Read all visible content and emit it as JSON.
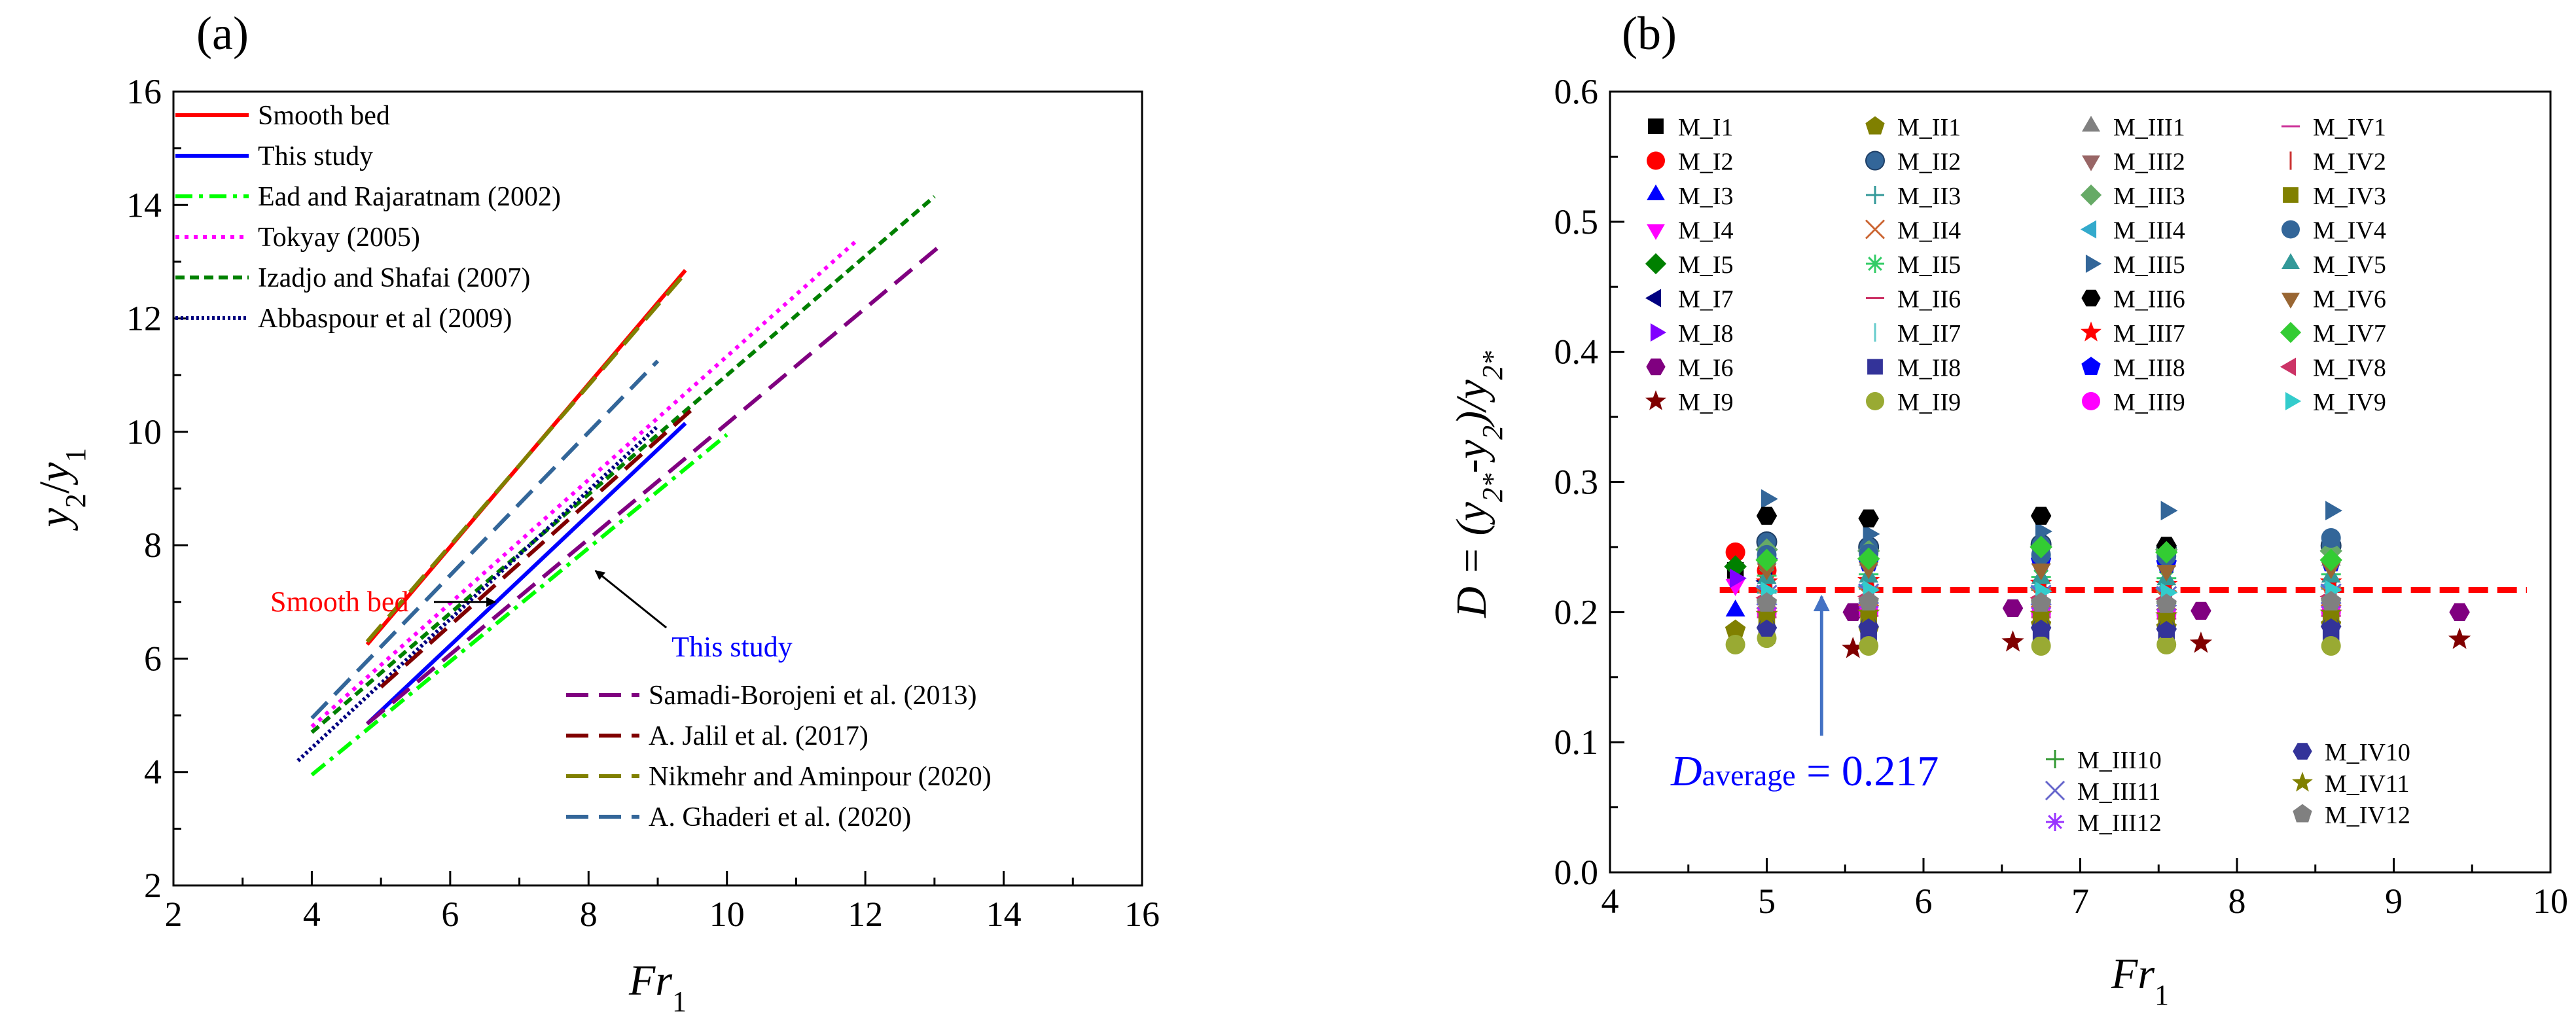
{
  "chart_data": [
    {
      "panel_label": "(a)",
      "type": "line",
      "xlabel_main": "Fr",
      "xlabel_sub": "1",
      "ylabel": {
        "y": "y",
        "s2": "2",
        "slash": "/",
        "y_b": "y",
        "s1": "1"
      },
      "xlim": [
        2,
        16
      ],
      "ylim": [
        2,
        16
      ],
      "xticks": [
        "2",
        "4",
        "6",
        "8",
        "10",
        "12",
        "14",
        "16"
      ],
      "yticks": [
        "2",
        "4",
        "6",
        "8",
        "10",
        "12",
        "14",
        "16"
      ],
      "series": [
        {
          "name": "Smooth bed",
          "color": "#ff0000",
          "dash": "solid",
          "x": [
            4.8,
            9.4
          ],
          "y": [
            6.25,
            12.85
          ]
        },
        {
          "name": "This study",
          "color": "#0000ff",
          "dash": "solid",
          "x": [
            4.8,
            9.4
          ],
          "y": [
            4.85,
            10.15
          ]
        },
        {
          "name": "Ead and Rajaratnam (2002)",
          "color": "#00ff00",
          "dash": "dashdot",
          "x": [
            4.0,
            10.0
          ],
          "y": [
            3.95,
            9.95
          ]
        },
        {
          "name": "Tokyay (2005)",
          "color": "#ff00ff",
          "dash": "dot",
          "x": [
            4.0,
            11.9
          ],
          "y": [
            4.8,
            13.4
          ]
        },
        {
          "name": "Izadjo and Shafai (2007)",
          "color": "#008000",
          "dash": "dash",
          "x": [
            4.0,
            13.0
          ],
          "y": [
            4.7,
            14.15
          ]
        },
        {
          "name": "Abbaspour et al (2009)",
          "color": "#000080",
          "dash": "densedot",
          "x": [
            3.8,
            9.0
          ],
          "y": [
            4.2,
            10.1
          ]
        },
        {
          "name": "Samadi-Borojeni et al. (2013)",
          "color": "#800080",
          "dash": "longdash",
          "x": [
            4.8,
            13.1
          ],
          "y": [
            4.85,
            13.3
          ]
        },
        {
          "name": "A. Jalil et al. (2017)",
          "color": "#800000",
          "dash": "longdash",
          "x": [
            5.0,
            9.5
          ],
          "y": [
            5.5,
            10.4
          ]
        },
        {
          "name": "Nikmehr and Aminpour (2020)",
          "color": "#808000",
          "dash": "longdash",
          "x": [
            4.8,
            9.4
          ],
          "y": [
            6.3,
            12.8
          ]
        },
        {
          "name": "A. Ghaderi et al. (2020)",
          "color": "#336699",
          "dash": "longdash",
          "x": [
            4.0,
            9.0
          ],
          "y": [
            4.95,
            11.25
          ]
        }
      ],
      "annotations": [
        {
          "text": "Smooth bed",
          "color": "#ff0000",
          "x": 3.4,
          "y": 7.0,
          "arrow_to": [
            6.65,
            7.0
          ]
        },
        {
          "text": "This study",
          "color": "#0000ff",
          "x": 9.2,
          "y": 6.2,
          "arrow_to": [
            8.1,
            7.55
          ]
        }
      ]
    },
    {
      "panel_label": "(b)",
      "type": "scatter",
      "xlabel_main": "Fr",
      "xlabel_sub": "1",
      "ylabel": {
        "prefix": "D = (y",
        "s1": "2*",
        "mid": "-y",
        "s2": "2",
        "close": ")/y",
        "s3": "2*"
      },
      "xlim": [
        4,
        10
      ],
      "ylim": [
        0.0,
        0.6
      ],
      "xticks": [
        "4",
        "5",
        "6",
        "7",
        "8",
        "9",
        "10"
      ],
      "yticks": [
        "0.0",
        "0.1",
        "0.2",
        "0.3",
        "0.4",
        "0.5",
        "0.6"
      ],
      "average_line": {
        "value": 0.217,
        "color": "#ff0000"
      },
      "annotation": {
        "main": "D",
        "sub": "average",
        "rest": " = 0.217",
        "color": "#0000ff",
        "arrow_from": [
          5.35,
          0.105
        ],
        "arrow_to": [
          5.35,
          0.212
        ]
      },
      "series": [
        {
          "name": "M_I1",
          "color": "#000000",
          "marker": "square",
          "x": [
            4.8
          ],
          "y": [
            0.232
          ]
        },
        {
          "name": "M_I2",
          "color": "#ff0000",
          "marker": "circle",
          "x": [
            4.8,
            5.0
          ],
          "y": [
            0.246,
            0.232
          ]
        },
        {
          "name": "M_I3",
          "color": "#0000ff",
          "marker": "triangle-up",
          "x": [
            4.8
          ],
          "y": [
            0.201
          ]
        },
        {
          "name": "M_I4",
          "color": "#ff00ff",
          "marker": "triangle-down",
          "x": [
            4.8
          ],
          "y": [
            0.221
          ]
        },
        {
          "name": "M_I5",
          "color": "#008000",
          "marker": "diamond",
          "x": [
            4.8
          ],
          "y": [
            0.235
          ]
        },
        {
          "name": "M_I7",
          "color": "#000080",
          "marker": "triangle-left",
          "x": [
            5.0
          ],
          "y": [
            0.224
          ]
        },
        {
          "name": "M_I8",
          "color": "#8000ff",
          "marker": "triangle-right",
          "x": [
            4.8,
            5.0
          ],
          "y": [
            0.226,
            0.241
          ]
        },
        {
          "name": "M_I6",
          "color": "#800080",
          "marker": "hexagon",
          "x": [
            5.55,
            6.57,
            7.77,
            9.42
          ],
          "y": [
            0.2,
            0.203,
            0.201,
            0.2
          ]
        },
        {
          "name": "M_I9",
          "color": "#800000",
          "marker": "star",
          "x": [
            5.55,
            6.57,
            7.77,
            9.42
          ],
          "y": [
            0.172,
            0.177,
            0.176,
            0.179
          ]
        },
        {
          "name": "M_II1",
          "color": "#808000",
          "marker": "pentagon",
          "x": [
            4.8,
            5.65,
            6.75,
            7.55,
            8.6
          ],
          "y": [
            0.186,
            0.186,
            0.19,
            0.188,
            0.19
          ]
        },
        {
          "name": "M_II2",
          "color": "#336699",
          "marker": "circle-shaded",
          "x": [
            5.0,
            5.65,
            6.75,
            7.55,
            8.6
          ],
          "y": [
            0.254,
            0.25,
            0.252,
            0.248,
            0.251
          ]
        },
        {
          "name": "M_II3",
          "color": "#339999",
          "marker": "plus-thin",
          "x": [
            5.0,
            5.65,
            6.75,
            7.55,
            8.6
          ],
          "y": [
            0.215,
            0.218,
            0.217,
            0.216,
            0.218
          ]
        },
        {
          "name": "M_II4",
          "color": "#cc6633",
          "marker": "x-thin",
          "x": [
            5.0,
            5.65,
            6.75,
            7.55,
            8.6
          ],
          "y": [
            0.21,
            0.212,
            0.211,
            0.209,
            0.212
          ]
        },
        {
          "name": "M_II5",
          "color": "#33cc66",
          "marker": "asterisk",
          "x": [
            5.0,
            5.65,
            6.75,
            7.55,
            8.6
          ],
          "y": [
            0.228,
            0.229,
            0.227,
            0.226,
            0.229
          ]
        },
        {
          "name": "M_II6",
          "color": "#cc3366",
          "marker": "hline",
          "x": [
            5.0,
            5.65,
            6.75,
            7.55,
            8.6
          ],
          "y": [
            0.2,
            0.201,
            0.2,
            0.199,
            0.201
          ]
        },
        {
          "name": "M_II7",
          "color": "#66cccc",
          "marker": "vline",
          "x": [
            5.0,
            5.65,
            6.75,
            7.55,
            8.6
          ],
          "y": [
            0.205,
            0.206,
            0.205,
            0.204,
            0.206
          ]
        },
        {
          "name": "M_II8",
          "color": "#333399",
          "marker": "square",
          "x": [
            5.0,
            5.65,
            6.75,
            7.55,
            8.6
          ],
          "y": [
            0.182,
            0.183,
            0.182,
            0.181,
            0.183
          ]
        },
        {
          "name": "M_II9",
          "color": "#99aa33",
          "marker": "circle",
          "x": [
            4.8,
            5.0,
            5.65,
            6.75,
            7.55,
            8.6
          ],
          "y": [
            0.175,
            0.18,
            0.174,
            0.174,
            0.175,
            0.174
          ]
        },
        {
          "name": "M_III1",
          "color": "#808080",
          "marker": "triangle-up",
          "x": [
            5.0,
            5.65,
            6.75,
            7.55,
            8.6
          ],
          "y": [
            0.242,
            0.24,
            0.241,
            0.239,
            0.24
          ]
        },
        {
          "name": "M_III2",
          "color": "#996666",
          "marker": "triangle-down",
          "x": [
            5.0,
            5.65,
            6.75,
            7.55,
            8.6
          ],
          "y": [
            0.236,
            0.235,
            0.236,
            0.234,
            0.235
          ]
        },
        {
          "name": "M_III3",
          "color": "#66aa66",
          "marker": "diamond",
          "x": [
            5.0,
            5.65,
            6.75,
            7.55,
            8.6
          ],
          "y": [
            0.248,
            0.247,
            0.25,
            0.248,
            0.247
          ]
        },
        {
          "name": "M_III4",
          "color": "#33aacc",
          "marker": "triangle-left",
          "x": [
            5.0,
            5.65,
            6.75,
            7.55,
            8.6
          ],
          "y": [
            0.219,
            0.22,
            0.219,
            0.218,
            0.22
          ]
        },
        {
          "name": "M_III5",
          "color": "#336699",
          "marker": "triangle-right",
          "x": [
            5.0,
            5.65,
            6.75,
            7.55,
            8.6
          ],
          "y": [
            0.287,
            0.26,
            0.262,
            0.278,
            0.278
          ]
        },
        {
          "name": "M_III6",
          "color": "#000000",
          "marker": "hexagon",
          "x": [
            5.0,
            5.65,
            6.75,
            7.55
          ],
          "y": [
            0.274,
            0.272,
            0.274,
            0.251
          ]
        },
        {
          "name": "M_III7",
          "color": "#ff0000",
          "marker": "star",
          "x": [
            5.0,
            5.65,
            6.75,
            7.55,
            8.6
          ],
          "y": [
            0.223,
            0.224,
            0.222,
            0.221,
            0.223
          ]
        },
        {
          "name": "M_III8",
          "color": "#0000ff",
          "marker": "pentagon",
          "x": [
            5.0,
            5.65,
            6.75,
            7.55,
            8.6
          ],
          "y": [
            0.239,
            0.238,
            0.239,
            0.237,
            0.238
          ]
        },
        {
          "name": "M_III9",
          "color": "#ff00ff",
          "marker": "circle",
          "x": [
            5.0,
            5.65,
            6.75,
            7.55,
            8.6
          ],
          "y": [
            0.199,
            0.2,
            0.199,
            0.198,
            0.2
          ]
        },
        {
          "name": "M_III10",
          "color": "#339933",
          "marker": "plus-thin",
          "x": [
            5.0,
            5.65,
            6.75,
            7.55,
            8.6
          ],
          "y": [
            0.208,
            0.209,
            0.208,
            0.207,
            0.209
          ]
        },
        {
          "name": "M_III11",
          "color": "#6666cc",
          "marker": "x-thin",
          "x": [
            5.0,
            5.65,
            6.75,
            7.55,
            8.6
          ],
          "y": [
            0.213,
            0.214,
            0.213,
            0.212,
            0.214
          ]
        },
        {
          "name": "M_III12",
          "color": "#9933ff",
          "marker": "asterisk",
          "x": [
            5.0,
            5.65,
            6.75,
            7.55,
            8.6
          ],
          "y": [
            0.203,
            0.204,
            0.203,
            0.202,
            0.204
          ]
        },
        {
          "name": "M_IV1",
          "color": "#cc3399",
          "marker": "hline",
          "x": [
            5.0,
            5.65,
            6.75,
            7.55,
            8.6
          ],
          "y": [
            0.196,
            0.197,
            0.196,
            0.195,
            0.197
          ]
        },
        {
          "name": "M_IV2",
          "color": "#cc3333",
          "marker": "vline",
          "x": [
            5.0,
            5.65,
            6.75,
            7.55,
            8.6
          ],
          "y": [
            0.231,
            0.232,
            0.231,
            0.23,
            0.232
          ]
        },
        {
          "name": "M_IV3",
          "color": "#808000",
          "marker": "square",
          "x": [
            5.0,
            5.65,
            6.75,
            7.55,
            8.6
          ],
          "y": [
            0.193,
            0.194,
            0.193,
            0.192,
            0.194
          ]
        },
        {
          "name": "M_IV4",
          "color": "#336699",
          "marker": "circle",
          "x": [
            5.0,
            5.65,
            6.75,
            7.55,
            8.6
          ],
          "y": [
            0.244,
            0.245,
            0.244,
            0.243,
            0.257
          ]
        },
        {
          "name": "M_IV5",
          "color": "#339999",
          "marker": "triangle-up",
          "x": [
            5.0,
            5.65,
            6.75,
            7.55,
            8.6
          ],
          "y": [
            0.226,
            0.227,
            0.226,
            0.225,
            0.227
          ]
        },
        {
          "name": "M_IV6",
          "color": "#996633",
          "marker": "triangle-down",
          "x": [
            5.0,
            5.65,
            6.75,
            7.55,
            8.6
          ],
          "y": [
            0.233,
            0.234,
            0.233,
            0.232,
            0.234
          ]
        },
        {
          "name": "M_IV7",
          "color": "#33cc33",
          "marker": "diamond",
          "x": [
            5.0,
            5.65,
            6.75,
            7.55,
            8.6
          ],
          "y": [
            0.24,
            0.241,
            0.25,
            0.246,
            0.24
          ]
        },
        {
          "name": "M_IV8",
          "color": "#cc3366",
          "marker": "triangle-left",
          "x": [
            5.0,
            5.65,
            6.75,
            7.55,
            8.6
          ],
          "y": [
            0.211,
            0.212,
            0.211,
            0.21,
            0.212
          ]
        },
        {
          "name": "M_IV9",
          "color": "#33cccc",
          "marker": "triangle-right",
          "x": [
            5.0,
            5.65,
            6.75,
            7.55,
            8.6
          ],
          "y": [
            0.216,
            0.217,
            0.216,
            0.215,
            0.217
          ]
        },
        {
          "name": "M_IV10",
          "color": "#333399",
          "marker": "hexagon",
          "x": [
            5.0,
            5.65,
            6.75,
            7.55,
            8.6
          ],
          "y": [
            0.188,
            0.189,
            0.188,
            0.187,
            0.189
          ]
        },
        {
          "name": "M_IV11",
          "color": "#808000",
          "marker": "star",
          "x": [
            5.0,
            5.65,
            6.75,
            7.55,
            8.6
          ],
          "y": [
            0.198,
            0.199,
            0.198,
            0.197,
            0.199
          ]
        },
        {
          "name": "M_IV12",
          "color": "#808080",
          "marker": "pentagon",
          "x": [
            5.0,
            5.65,
            6.75,
            7.55,
            8.6
          ],
          "y": [
            0.207,
            0.208,
            0.207,
            0.206,
            0.208
          ]
        }
      ]
    }
  ]
}
